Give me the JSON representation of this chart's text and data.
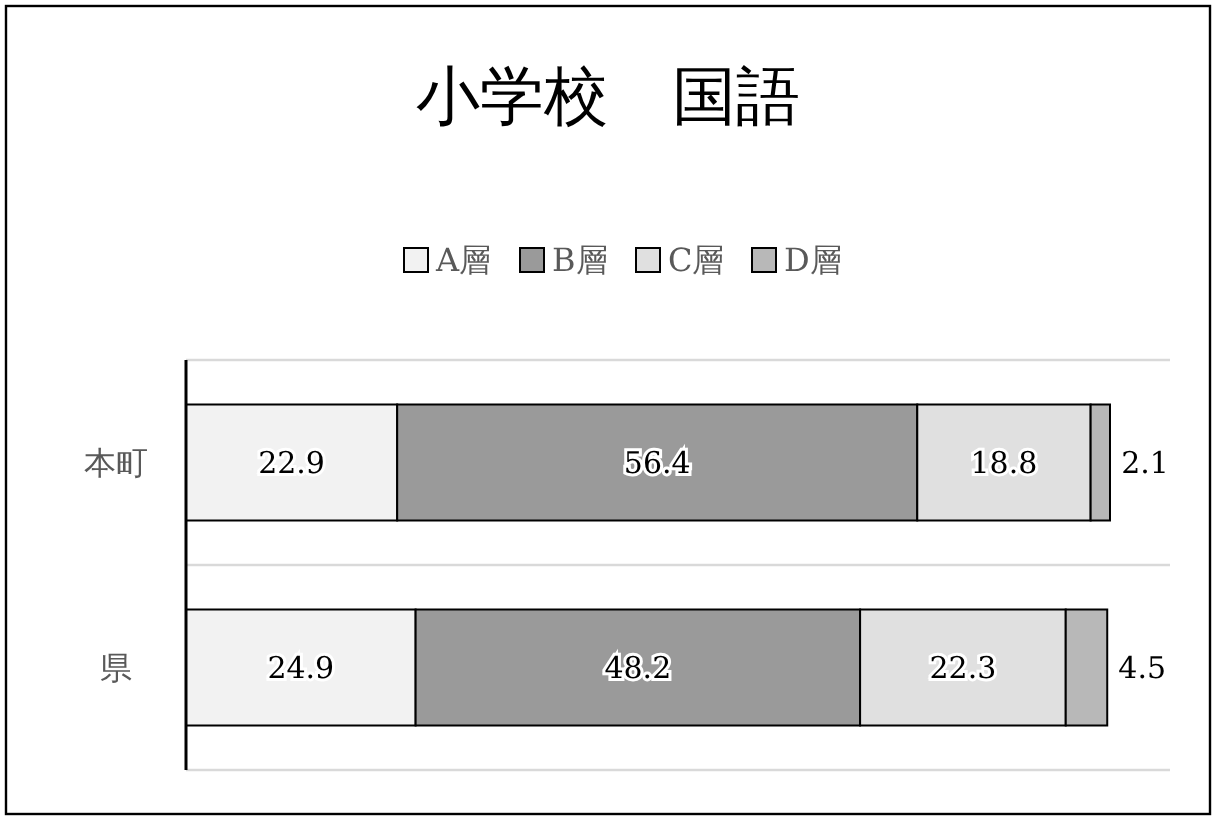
{
  "chart_data": {
    "type": "bar",
    "orientation": "horizontal",
    "stacked": true,
    "title": "小学校　国語",
    "categories": [
      "本町",
      "県"
    ],
    "series": [
      {
        "name": "A層",
        "color": "#f2f2f2",
        "values": [
          22.9,
          24.9
        ]
      },
      {
        "name": "B層",
        "color": "#9a9a9a",
        "values": [
          56.4,
          48.2
        ]
      },
      {
        "name": "C層",
        "color": "#e0e0e0",
        "values": [
          18.8,
          22.3
        ]
      },
      {
        "name": "D層",
        "color": "#b8b8b8",
        "values": [
          2.1,
          4.5
        ]
      }
    ],
    "data_labels": true,
    "legend": "top",
    "grid": "y"
  }
}
